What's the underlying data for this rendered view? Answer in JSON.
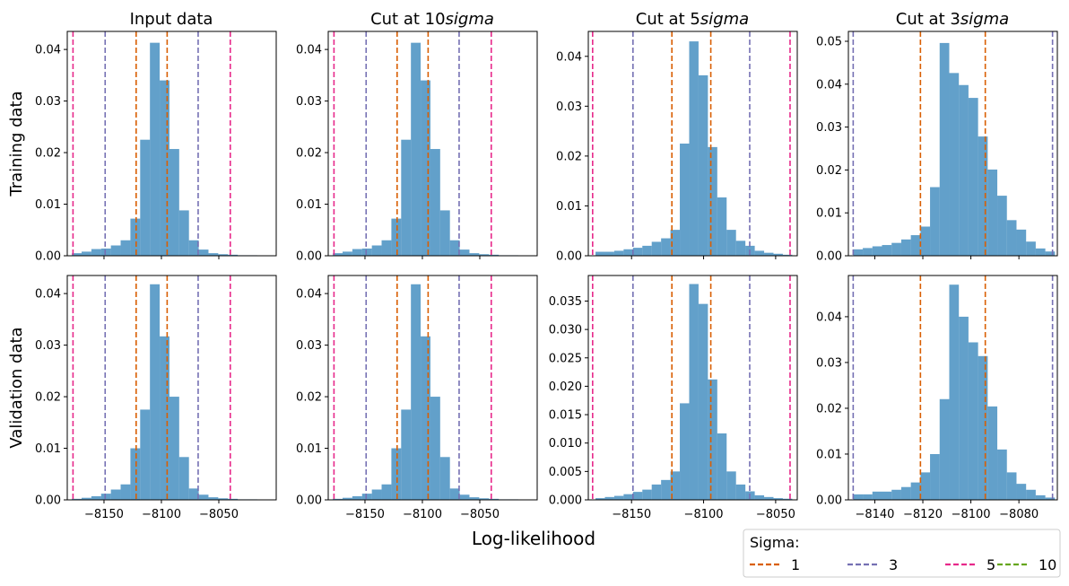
{
  "figure": {
    "xlabel": "Log-likelihood",
    "row_labels": [
      "Training data",
      "Validation data"
    ],
    "col_titles": [
      "Input data",
      "Cut at 10",
      "Cut at 5",
      "Cut at 3"
    ],
    "col_title_suffix": "sigma"
  },
  "legend": {
    "title": "Sigma:",
    "entries": [
      {
        "label": "1",
        "color": "#d95f02"
      },
      {
        "label": "3",
        "color": "#7570b3"
      },
      {
        "label": "5",
        "color": "#e7298a"
      },
      {
        "label": "10",
        "color": "#66a61e"
      }
    ]
  },
  "colors": {
    "bar": "#1f77b4",
    "bar_alpha": 0.7
  },
  "chart_data": [
    {
      "type": "bar",
      "row": "Training data",
      "title": "Input data",
      "xlim": [
        -8182,
        -8000
      ],
      "ylim": [
        0,
        0.0435
      ],
      "xticks": [],
      "yticks": [
        0,
        0.01,
        0.02,
        0.03,
        0.04
      ],
      "ytick_labels": [
        "0.00",
        "0.01",
        "0.02",
        "0.03",
        "0.04"
      ],
      "bin_width": 8.5,
      "bin_starts": [
        -8178,
        -8169.5,
        -8161,
        -8152.5,
        -8144,
        -8135.5,
        -8127,
        -8118.5,
        -8110,
        -8101.5,
        -8093,
        -8084.5,
        -8076,
        -8067.5,
        -8059,
        -8050.5,
        -8042,
        -8033.5,
        -8025
      ],
      "values": [
        0.0005,
        0.0008,
        0.0013,
        0.0014,
        0.002,
        0.003,
        0.0072,
        0.0225,
        0.0413,
        0.034,
        0.0207,
        0.0088,
        0.003,
        0.0012,
        0.0005,
        0.0003,
        0.0002,
        0.0001,
        0.0001
      ],
      "vlines": [
        {
          "sigma": "1",
          "x": [
            -8122,
            -8095
          ]
        },
        {
          "sigma": "3",
          "x": [
            -8149,
            -8068
          ]
        },
        {
          "sigma": "5",
          "x": [
            -8177,
            -8040
          ]
        }
      ]
    },
    {
      "type": "bar",
      "row": "Training data",
      "title": "Cut at 10sigma",
      "xlim": [
        -8182,
        -8000
      ],
      "ylim": [
        0,
        0.0435
      ],
      "xticks": [],
      "yticks": [
        0,
        0.01,
        0.02,
        0.03,
        0.04
      ],
      "ytick_labels": [
        "0.00",
        "0.01",
        "0.02",
        "0.03",
        "0.04"
      ],
      "bin_width": 8.5,
      "bin_starts": [
        -8178,
        -8169.5,
        -8161,
        -8152.5,
        -8144,
        -8135.5,
        -8127,
        -8118.5,
        -8110,
        -8101.5,
        -8093,
        -8084.5,
        -8076,
        -8067.5,
        -8059,
        -8050.5,
        -8042,
        -8033.5,
        -8025
      ],
      "values": [
        0.0005,
        0.0008,
        0.0013,
        0.0014,
        0.002,
        0.003,
        0.0072,
        0.0225,
        0.0413,
        0.034,
        0.0207,
        0.0088,
        0.003,
        0.0012,
        0.0005,
        0.0003,
        0.0002,
        0.0001,
        0.0001
      ],
      "vlines": [
        {
          "sigma": "1",
          "x": [
            -8122,
            -8095
          ]
        },
        {
          "sigma": "3",
          "x": [
            -8149,
            -8068
          ]
        },
        {
          "sigma": "5",
          "x": [
            -8177,
            -8040
          ]
        }
      ]
    },
    {
      "type": "bar",
      "row": "Training data",
      "title": "Cut at 5sigma",
      "xlim": [
        -8180,
        -8035
      ],
      "ylim": [
        0,
        0.045
      ],
      "xticks": [],
      "yticks": [
        0,
        0.01,
        0.02,
        0.03,
        0.04
      ],
      "ytick_labels": [
        "0.00",
        "0.01",
        "0.02",
        "0.03",
        "0.04"
      ],
      "bin_width": 6.5,
      "bin_starts": [
        -8175,
        -8168.5,
        -8162,
        -8155.5,
        -8149,
        -8142.5,
        -8136,
        -8129.5,
        -8123,
        -8116.5,
        -8110,
        -8103.5,
        -8097,
        -8090.5,
        -8084,
        -8077.5,
        -8071,
        -8064.5,
        -8058,
        -8051.5,
        -8045
      ],
      "values": [
        0.0008,
        0.0008,
        0.001,
        0.0013,
        0.0016,
        0.002,
        0.0028,
        0.0035,
        0.0052,
        0.0225,
        0.043,
        0.0362,
        0.0218,
        0.0117,
        0.0052,
        0.003,
        0.002,
        0.001,
        0.0006,
        0.0004,
        0.0002
      ],
      "vlines": [
        {
          "sigma": "1",
          "x": [
            -8122,
            -8095
          ]
        },
        {
          "sigma": "3",
          "x": [
            -8149,
            -8068
          ]
        },
        {
          "sigma": "5",
          "x": [
            -8177,
            -8040
          ]
        }
      ]
    },
    {
      "type": "bar",
      "row": "Training data",
      "title": "Cut at 3sigma",
      "xlim": [
        -8151,
        -8064
      ],
      "ylim": [
        0,
        0.0523
      ],
      "xticks": [],
      "yticks": [
        0,
        0.01,
        0.02,
        0.03,
        0.04,
        0.05
      ],
      "ytick_labels": [
        "0.00",
        "0.01",
        "0.02",
        "0.03",
        "0.04",
        "0.05"
      ],
      "bin_width": 4,
      "bin_starts": [
        -8149,
        -8145,
        -8141,
        -8137,
        -8133,
        -8129,
        -8125,
        -8121,
        -8117,
        -8113,
        -8109,
        -8105,
        -8101,
        -8097,
        -8093,
        -8089,
        -8085,
        -8081,
        -8077,
        -8073,
        -8069
      ],
      "values": [
        0.0015,
        0.0018,
        0.0022,
        0.0025,
        0.003,
        0.0038,
        0.0048,
        0.0068,
        0.016,
        0.0496,
        0.0426,
        0.0398,
        0.0368,
        0.0278,
        0.0201,
        0.014,
        0.0083,
        0.0061,
        0.0033,
        0.0017,
        0.001
      ],
      "vlines": [
        {
          "sigma": "1",
          "x": [
            -8121,
            -8094
          ]
        },
        {
          "sigma": "3",
          "x": [
            -8149,
            -8066
          ]
        }
      ]
    },
    {
      "type": "bar",
      "row": "Validation data",
      "title": "Input data",
      "xlim": [
        -8182,
        -8000
      ],
      "ylim": [
        0,
        0.0435
      ],
      "xticks": [
        -8150,
        -8100,
        -8050
      ],
      "yticks": [
        0,
        0.01,
        0.02,
        0.03,
        0.04
      ],
      "ytick_labels": [
        "0.00",
        "0.01",
        "0.02",
        "0.03",
        "0.04"
      ],
      "bin_width": 8.5,
      "bin_starts": [
        -8178,
        -8169.5,
        -8161,
        -8152.5,
        -8144,
        -8135.5,
        -8127,
        -8118.5,
        -8110,
        -8101.5,
        -8093,
        -8084.5,
        -8076,
        -8067.5,
        -8059,
        -8050.5,
        -8042,
        -8033.5,
        -8025
      ],
      "values": [
        0.0002,
        0.0004,
        0.0007,
        0.0012,
        0.002,
        0.003,
        0.01,
        0.0175,
        0.0418,
        0.0317,
        0.02,
        0.0083,
        0.0022,
        0.001,
        0.0005,
        0.0003,
        0.0002,
        0.0001,
        0.0001
      ],
      "vlines": [
        {
          "sigma": "1",
          "x": [
            -8122,
            -8095
          ]
        },
        {
          "sigma": "3",
          "x": [
            -8149,
            -8068
          ]
        },
        {
          "sigma": "5",
          "x": [
            -8177,
            -8040
          ]
        }
      ]
    },
    {
      "type": "bar",
      "row": "Validation data",
      "title": "Cut at 10sigma",
      "xlim": [
        -8182,
        -8000
      ],
      "ylim": [
        0,
        0.0435
      ],
      "xticks": [
        -8150,
        -8100,
        -8050
      ],
      "yticks": [
        0,
        0.01,
        0.02,
        0.03,
        0.04
      ],
      "ytick_labels": [
        "0.00",
        "0.01",
        "0.02",
        "0.03",
        "0.04"
      ],
      "bin_width": 8.5,
      "bin_starts": [
        -8178,
        -8169.5,
        -8161,
        -8152.5,
        -8144,
        -8135.5,
        -8127,
        -8118.5,
        -8110,
        -8101.5,
        -8093,
        -8084.5,
        -8076,
        -8067.5,
        -8059,
        -8050.5,
        -8042,
        -8033.5,
        -8025
      ],
      "values": [
        0.0002,
        0.0004,
        0.0007,
        0.0012,
        0.002,
        0.003,
        0.01,
        0.0175,
        0.0418,
        0.0317,
        0.02,
        0.0083,
        0.0022,
        0.001,
        0.0005,
        0.0003,
        0.0002,
        0.0001,
        0.0001
      ],
      "vlines": [
        {
          "sigma": "1",
          "x": [
            -8122,
            -8095
          ]
        },
        {
          "sigma": "3",
          "x": [
            -8149,
            -8068
          ]
        },
        {
          "sigma": "5",
          "x": [
            -8177,
            -8040
          ]
        }
      ]
    },
    {
      "type": "bar",
      "row": "Validation data",
      "title": "Cut at 5sigma",
      "xlim": [
        -8180,
        -8035
      ],
      "ylim": [
        0,
        0.0395
      ],
      "xticks": [
        -8150,
        -8100,
        -8050
      ],
      "yticks": [
        0,
        0.005,
        0.01,
        0.015,
        0.02,
        0.025,
        0.03,
        0.035
      ],
      "ytick_labels": [
        "0.000",
        "0.005",
        "0.010",
        "0.015",
        "0.020",
        "0.025",
        "0.030",
        "0.035"
      ],
      "bin_width": 6.5,
      "bin_starts": [
        -8175,
        -8168.5,
        -8162,
        -8155.5,
        -8149,
        -8142.5,
        -8136,
        -8129.5,
        -8123,
        -8116.5,
        -8110,
        -8103.5,
        -8097,
        -8090.5,
        -8084,
        -8077.5,
        -8071,
        -8064.5,
        -8058,
        -8051.5,
        -8045
      ],
      "values": [
        0.0003,
        0.0005,
        0.0007,
        0.001,
        0.0014,
        0.0018,
        0.0027,
        0.0035,
        0.005,
        0.017,
        0.038,
        0.0345,
        0.0212,
        0.0117,
        0.005,
        0.0027,
        0.0015,
        0.0008,
        0.0005,
        0.0003,
        0.0002
      ],
      "vlines": [
        {
          "sigma": "1",
          "x": [
            -8122,
            -8095
          ]
        },
        {
          "sigma": "3",
          "x": [
            -8149,
            -8068
          ]
        },
        {
          "sigma": "5",
          "x": [
            -8177,
            -8040
          ]
        }
      ]
    },
    {
      "type": "bar",
      "row": "Validation data",
      "title": "Cut at 3sigma",
      "xlim": [
        -8151,
        -8064
      ],
      "ylim": [
        0,
        0.049
      ],
      "xticks": [
        -8140,
        -8120,
        -8100,
        -8080
      ],
      "yticks": [
        0,
        0.01,
        0.02,
        0.03,
        0.04
      ],
      "ytick_labels": [
        "0.00",
        "0.01",
        "0.02",
        "0.03",
        "0.04"
      ],
      "bin_width": 4,
      "bin_starts": [
        -8149,
        -8145,
        -8141,
        -8137,
        -8133,
        -8129,
        -8125,
        -8121,
        -8117,
        -8113,
        -8109,
        -8105,
        -8101,
        -8097,
        -8093,
        -8089,
        -8085,
        -8081,
        -8077,
        -8073,
        -8069
      ],
      "values": [
        0.0012,
        0.0012,
        0.0018,
        0.0018,
        0.0022,
        0.0028,
        0.0038,
        0.006,
        0.01,
        0.022,
        0.047,
        0.04,
        0.0344,
        0.0314,
        0.0204,
        0.011,
        0.006,
        0.0035,
        0.0022,
        0.001,
        0.0005
      ],
      "vlines": [
        {
          "sigma": "1",
          "x": [
            -8121,
            -8094
          ]
        },
        {
          "sigma": "3",
          "x": [
            -8149,
            -8066
          ]
        }
      ]
    }
  ]
}
